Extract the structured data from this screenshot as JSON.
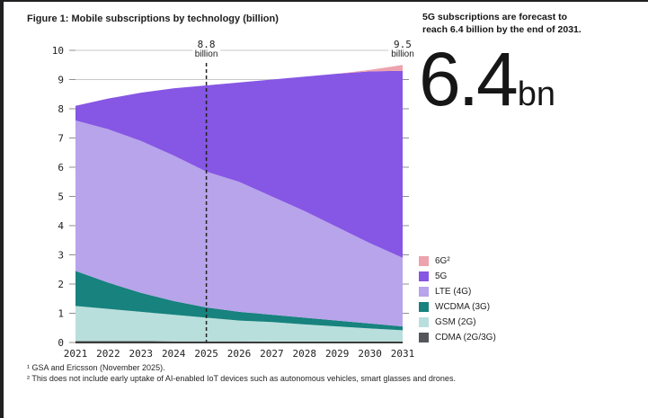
{
  "figure": {
    "title": "Figure 1: Mobile subscriptions by technology (billion)"
  },
  "sidebar": {
    "headline": "5G subscriptions are forecast to reach 6.4 billion by the end of 2031.",
    "big_number": "6.4",
    "big_number_unit": "bn"
  },
  "footnotes": [
    "¹ GSA and Ericsson (November 2025).",
    "² This does not include early uptake of AI-enabled IoT devices such as autonomous vehicles, smart glasses and drones."
  ],
  "colors": {
    "gridline": "#c9c9c9",
    "tick": "#8f8f8f",
    "axis_line": "#3c3c3c",
    "dashed_line": "#222222",
    "text": "#1f1f1f",
    "border": "#202022"
  },
  "chart_data": {
    "type": "area",
    "stacked": true,
    "title": "Figure 1: Mobile subscriptions by technology (billion)",
    "x": [
      2021,
      2022,
      2023,
      2024,
      2025,
      2026,
      2027,
      2028,
      2029,
      2030,
      2031
    ],
    "ylim": [
      0,
      10
    ],
    "yticks": [
      0,
      1,
      2,
      3,
      4,
      5,
      6,
      7,
      8,
      9,
      10
    ],
    "grid": "horizontal",
    "legend_position": "right",
    "series": [
      {
        "name": "CDMA (2G/3G)",
        "color": "#54565a",
        "values": [
          0.05,
          0.05,
          0.05,
          0.04,
          0.04,
          0.04,
          0.03,
          0.03,
          0.03,
          0.03,
          0.03
        ]
      },
      {
        "name": "GSM (2G)",
        "color": "#b9dfdc",
        "values": [
          1.2,
          1.1,
          1.0,
          0.91,
          0.81,
          0.71,
          0.67,
          0.59,
          0.52,
          0.45,
          0.39
        ]
      },
      {
        "name": "WCDMA (3G)",
        "color": "#17827e",
        "values": [
          1.2,
          0.9,
          0.65,
          0.47,
          0.35,
          0.3,
          0.25,
          0.23,
          0.2,
          0.17,
          0.13
        ]
      },
      {
        "name": "LTE (4G)",
        "color": "#b7a4ea",
        "values": [
          5.15,
          5.25,
          5.2,
          4.98,
          4.65,
          4.45,
          4.05,
          3.65,
          3.2,
          2.75,
          2.35
        ]
      },
      {
        "name": "5G",
        "color": "#8656e4",
        "values": [
          0.5,
          1.05,
          1.65,
          2.3,
          2.95,
          3.4,
          4.0,
          4.6,
          5.25,
          5.88,
          6.4
        ]
      },
      {
        "name": "6G²",
        "color": "#eda3ad",
        "values": [
          0,
          0,
          0,
          0,
          0,
          0,
          0,
          0,
          0,
          0.05,
          0.2
        ]
      }
    ],
    "annotations": [
      {
        "year": 2025,
        "value": "8.8",
        "unit": "billion",
        "dashed": true
      },
      {
        "year": 2031,
        "value": "9.5",
        "unit": "billion",
        "dashed": false
      }
    ]
  }
}
